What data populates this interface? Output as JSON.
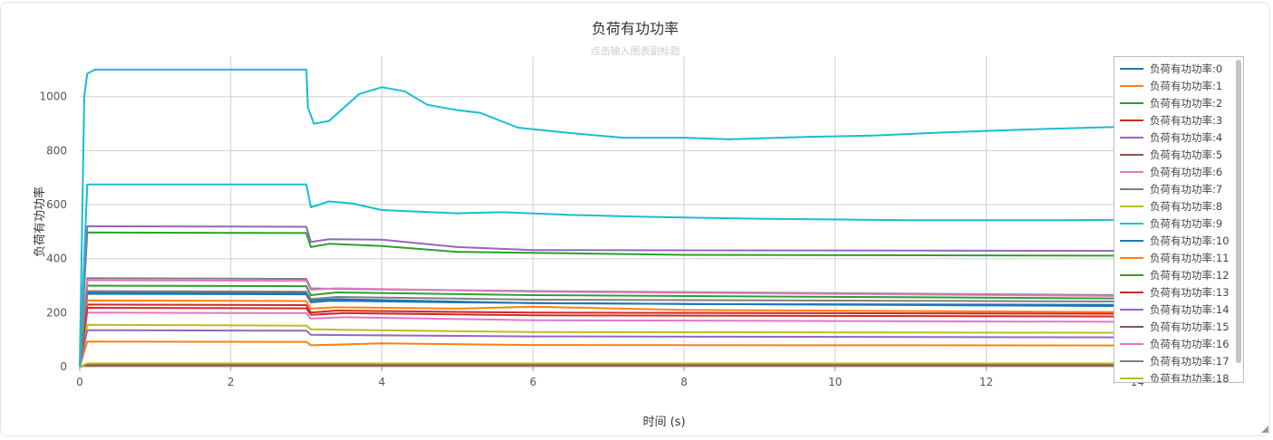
{
  "chart_data": {
    "type": "line",
    "title": "负荷有功功率",
    "subtitle": "点击输入图表副标题",
    "xlabel": "时间 (s)",
    "ylabel": "负荷有功功率",
    "xlim": [
      0,
      15.4
    ],
    "ylim": [
      0,
      1150
    ],
    "xticks": [
      0,
      2,
      4,
      6,
      8,
      10,
      12,
      14
    ],
    "yticks": [
      0,
      200,
      400,
      600,
      800,
      1000
    ],
    "grid": true,
    "legend_position": "top-right",
    "series": [
      {
        "name": "负荷有功功率:0",
        "color": "#1f77b4",
        "points": [
          [
            0,
            0
          ],
          [
            0.1,
            270
          ],
          [
            3,
            268
          ],
          [
            3.06,
            238
          ],
          [
            3.3,
            244
          ],
          [
            5,
            238
          ],
          [
            8,
            232
          ],
          [
            15.4,
            228
          ]
        ]
      },
      {
        "name": "负荷有功功率:1",
        "color": "#ff7f0e",
        "points": [
          [
            0,
            0
          ],
          [
            0.1,
            93
          ],
          [
            3,
            92
          ],
          [
            3.06,
            79
          ],
          [
            4,
            86
          ],
          [
            6,
            80
          ],
          [
            15.4,
            78
          ]
        ]
      },
      {
        "name": "负荷有功功率:2",
        "color": "#2ca02c",
        "points": [
          [
            0,
            0
          ],
          [
            0.1,
            497
          ],
          [
            3,
            495
          ],
          [
            3.06,
            443
          ],
          [
            3.3,
            455
          ],
          [
            4,
            447
          ],
          [
            5,
            425
          ],
          [
            8,
            414
          ],
          [
            15.4,
            410
          ]
        ]
      },
      {
        "name": "负荷有功功率:3",
        "color": "#d62728",
        "points": [
          [
            0,
            0
          ],
          [
            0.1,
            230
          ],
          [
            3,
            228
          ],
          [
            3.06,
            200
          ],
          [
            3.4,
            208
          ],
          [
            6,
            200
          ],
          [
            15.4,
            195
          ]
        ]
      },
      {
        "name": "负荷有功功率:4",
        "color": "#9467bd",
        "points": [
          [
            0,
            0
          ],
          [
            0.1,
            520
          ],
          [
            3,
            518
          ],
          [
            3.06,
            462
          ],
          [
            3.3,
            472
          ],
          [
            4,
            470
          ],
          [
            5,
            443
          ],
          [
            6,
            432
          ],
          [
            15.4,
            428
          ]
        ]
      },
      {
        "name": "负荷有功功率:5",
        "color": "#8c564b",
        "points": [
          [
            0,
            0
          ],
          [
            0.1,
            4
          ],
          [
            15.4,
            4
          ]
        ]
      },
      {
        "name": "负荷有功功率:6",
        "color": "#e377c2",
        "points": [
          [
            0,
            0
          ],
          [
            0.1,
            200
          ],
          [
            3,
            198
          ],
          [
            3.06,
            178
          ],
          [
            3.5,
            183
          ],
          [
            6,
            172
          ],
          [
            15.4,
            165
          ]
        ]
      },
      {
        "name": "负荷有功功率:7",
        "color": "#7f7f7f",
        "points": [
          [
            0,
            0
          ],
          [
            0.1,
            328
          ],
          [
            3,
            325
          ],
          [
            3.06,
            290
          ],
          [
            3.4,
            288
          ],
          [
            6,
            280
          ],
          [
            15.4,
            262
          ]
        ]
      },
      {
        "name": "负荷有功功率:8",
        "color": "#bcbd22",
        "points": [
          [
            0,
            0
          ],
          [
            0.1,
            155
          ],
          [
            3,
            152
          ],
          [
            3.06,
            138
          ],
          [
            6,
            128
          ],
          [
            15.4,
            125
          ]
        ]
      },
      {
        "name": "负荷有功功率:9",
        "color": "#17becf",
        "points": [
          [
            0,
            0
          ],
          [
            0.06,
            1000
          ],
          [
            0.1,
            1085
          ],
          [
            0.2,
            1100
          ],
          [
            3,
            1100
          ],
          [
            3.02,
            960
          ],
          [
            3.1,
            900
          ],
          [
            3.3,
            910
          ],
          [
            3.7,
            1010
          ],
          [
            4,
            1035
          ],
          [
            4.3,
            1020
          ],
          [
            4.6,
            970
          ],
          [
            5,
            950
          ],
          [
            5.3,
            940
          ],
          [
            5.8,
            885
          ],
          [
            6.5,
            865
          ],
          [
            7.2,
            848
          ],
          [
            8,
            848
          ],
          [
            8.6,
            842
          ],
          [
            9.5,
            850
          ],
          [
            10.5,
            856
          ],
          [
            11.5,
            868
          ],
          [
            12.5,
            878
          ],
          [
            14,
            890
          ],
          [
            15.4,
            903
          ]
        ]
      },
      {
        "name": "负荷有功功率:10",
        "color": "#1f77b4",
        "points": [
          [
            0,
            0
          ],
          [
            0.1,
            275
          ],
          [
            3,
            273
          ],
          [
            3.06,
            245
          ],
          [
            3.4,
            250
          ],
          [
            6,
            235
          ],
          [
            15.4,
            222
          ]
        ]
      },
      {
        "name": "负荷有功功率:11",
        "color": "#ff7f0e",
        "points": [
          [
            0,
            0
          ],
          [
            0.1,
            245
          ],
          [
            3,
            243
          ],
          [
            3.06,
            215
          ],
          [
            3.4,
            220
          ],
          [
            5,
            215
          ],
          [
            6,
            222
          ],
          [
            8,
            210
          ],
          [
            15.4,
            200
          ]
        ]
      },
      {
        "name": "负荷有功功率:12",
        "color": "#2ca02c",
        "points": [
          [
            0,
            0
          ],
          [
            0.1,
            300
          ],
          [
            3,
            298
          ],
          [
            3.06,
            265
          ],
          [
            3.4,
            275
          ],
          [
            6,
            265
          ],
          [
            15.4,
            250
          ]
        ]
      },
      {
        "name": "负荷有功功率:13",
        "color": "#d62728",
        "points": [
          [
            0,
            0
          ],
          [
            0.1,
            218
          ],
          [
            3,
            216
          ],
          [
            3.06,
            192
          ],
          [
            3.5,
            198
          ],
          [
            6,
            190
          ],
          [
            15.4,
            185
          ]
        ]
      },
      {
        "name": "负荷有功功率:14",
        "color": "#9467bd",
        "points": [
          [
            0,
            0
          ],
          [
            0.1,
            135
          ],
          [
            3,
            133
          ],
          [
            3.06,
            118
          ],
          [
            6,
            112
          ],
          [
            15.4,
            108
          ]
        ]
      },
      {
        "name": "负荷有功功率:15",
        "color": "#8c564b",
        "points": [
          [
            0,
            0
          ],
          [
            0.1,
            8
          ],
          [
            15.4,
            8
          ]
        ]
      },
      {
        "name": "负荷有功功率:16",
        "color": "#e377c2",
        "points": [
          [
            0,
            0
          ],
          [
            0.1,
            320
          ],
          [
            3,
            318
          ],
          [
            3.06,
            285
          ],
          [
            3.4,
            290
          ],
          [
            6,
            278
          ],
          [
            15.4,
            258
          ]
        ]
      },
      {
        "name": "负荷有功功率:17",
        "color": "#7f7f7f",
        "points": [
          [
            0,
            0
          ],
          [
            0.1,
            280
          ],
          [
            3,
            278
          ],
          [
            3.06,
            250
          ],
          [
            3.4,
            258
          ],
          [
            6,
            248
          ],
          [
            15.4,
            240
          ]
        ]
      },
      {
        "name": "负荷有功功率:18",
        "color": "#bcbd22",
        "points": [
          [
            0,
            0
          ],
          [
            0.1,
            12
          ],
          [
            15.4,
            12
          ]
        ]
      },
      {
        "name": "负荷有功功率:9",
        "color": "#17becf",
        "points": [
          [
            0,
            0
          ],
          [
            0.1,
            675
          ],
          [
            3,
            675
          ],
          [
            3.06,
            590
          ],
          [
            3.3,
            612
          ],
          [
            3.6,
            605
          ],
          [
            4,
            580
          ],
          [
            5,
            568
          ],
          [
            5.6,
            572
          ],
          [
            6.5,
            562
          ],
          [
            7.5,
            555
          ],
          [
            9,
            548
          ],
          [
            11,
            542
          ],
          [
            13,
            542
          ],
          [
            15.4,
            548
          ]
        ]
      }
    ]
  }
}
